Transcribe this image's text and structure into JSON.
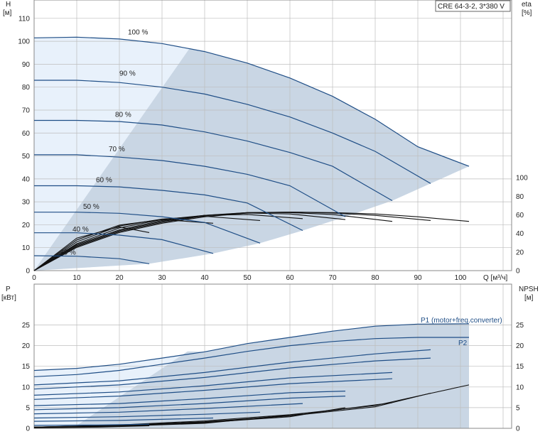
{
  "title": "CRE 64-3-2, 3*380 V",
  "colors": {
    "curve_blue": "#1f4e86",
    "eff_black": "#111111",
    "region_dark": "#c9d6e4",
    "region_light": "#e8f1fb",
    "grid": "#bdbdbd"
  },
  "chart_data": [
    {
      "type": "line",
      "title": "CRE 64-3-2, 3*380 V",
      "axes": {
        "x": {
          "label": "Q [м³/ч]",
          "ticks": [
            "0",
            "10",
            "20",
            "30",
            "40",
            "50",
            "60",
            "70",
            "80",
            "90",
            "100"
          ],
          "range": [
            0,
            112
          ]
        },
        "y_left": {
          "label_top": "H",
          "label_unit": "[м]",
          "ticks": [
            "0",
            "10",
            "20",
            "30",
            "40",
            "50",
            "60",
            "70",
            "80",
            "90",
            "100",
            "110"
          ],
          "range": [
            0,
            118
          ]
        },
        "y_right": {
          "label_top": "eta",
          "label_unit": "[%]",
          "ticks": [
            "0",
            "20",
            "40",
            "60",
            "80",
            "100"
          ],
          "range": [
            0,
            100
          ]
        }
      },
      "grid": true,
      "speed_labels": [
        "100 %",
        "90 %",
        "80 %",
        "70 %",
        "60 %",
        "50 %",
        "40 %",
        "25 %"
      ],
      "series": [
        {
          "name": "100 %",
          "axis": "H",
          "x": [
            0,
            10,
            20,
            30,
            40,
            50,
            60,
            70,
            80,
            90,
            102
          ],
          "y": [
            101.5,
            101.8,
            101,
            99,
            95.5,
            90.5,
            84,
            76,
            66,
            54,
            45.5
          ]
        },
        {
          "name": "90 %",
          "axis": "H",
          "x": [
            0,
            10,
            20,
            30,
            40,
            50,
            60,
            70,
            80,
            93
          ],
          "y": [
            83,
            83,
            82,
            80,
            77,
            72.5,
            67,
            60,
            52,
            38
          ]
        },
        {
          "name": "80 %",
          "axis": "H",
          "x": [
            0,
            10,
            20,
            30,
            40,
            50,
            60,
            70,
            84
          ],
          "y": [
            65.5,
            65.5,
            65,
            63.5,
            60.5,
            56.5,
            51.5,
            45.5,
            30.5
          ]
        },
        {
          "name": "70 %",
          "axis": "H",
          "x": [
            0,
            10,
            20,
            30,
            40,
            50,
            60,
            73
          ],
          "y": [
            50.5,
            50.5,
            49.5,
            48,
            45.5,
            42,
            37,
            23.5
          ]
        },
        {
          "name": "60 %",
          "axis": "H",
          "x": [
            0,
            10,
            20,
            30,
            40,
            50,
            63
          ],
          "y": [
            37,
            37,
            36.5,
            35,
            33,
            29.5,
            17.5
          ]
        },
        {
          "name": "50 %",
          "axis": "H",
          "x": [
            0,
            10,
            20,
            30,
            40,
            53
          ],
          "y": [
            25.5,
            25.5,
            25,
            23.5,
            21,
            12
          ]
        },
        {
          "name": "40 %",
          "axis": "H",
          "x": [
            0,
            10,
            20,
            30,
            42
          ],
          "y": [
            16.5,
            16.5,
            15.5,
            13.5,
            7.5
          ]
        },
        {
          "name": "25 %",
          "axis": "H",
          "x": [
            0,
            10,
            20,
            27
          ],
          "y": [
            6.5,
            6.3,
            5.2,
            3
          ]
        },
        {
          "name": "100 %",
          "axis": "eta",
          "x": [
            0,
            10,
            20,
            30,
            40,
            50,
            60,
            70,
            80,
            90,
            102
          ],
          "y": [
            0,
            25,
            41,
            51,
            58,
            62,
            63,
            62.5,
            61,
            58,
            53
          ]
        },
        {
          "name": "90 %",
          "axis": "eta",
          "x": [
            0,
            10,
            20,
            30,
            40,
            50,
            60,
            70,
            80,
            93
          ],
          "y": [
            0,
            26,
            42,
            52,
            59,
            62.5,
            63,
            62,
            59.5,
            54
          ]
        },
        {
          "name": "80 %",
          "axis": "eta",
          "x": [
            0,
            10,
            20,
            30,
            40,
            50,
            60,
            70,
            84
          ],
          "y": [
            0,
            27,
            43,
            53,
            59.5,
            62.5,
            62.5,
            60.5,
            53
          ]
        },
        {
          "name": "70 %",
          "axis": "eta",
          "x": [
            0,
            10,
            20,
            30,
            40,
            50,
            60,
            73
          ],
          "y": [
            0,
            28,
            44,
            54,
            59.5,
            62,
            61,
            55
          ]
        },
        {
          "name": "60 %",
          "axis": "eta",
          "x": [
            0,
            10,
            20,
            30,
            40,
            50,
            63
          ],
          "y": [
            0,
            29,
            46,
            55,
            59.5,
            60.5,
            56
          ]
        },
        {
          "name": "50 %",
          "axis": "eta",
          "x": [
            0,
            10,
            20,
            30,
            40,
            53
          ],
          "y": [
            0,
            31,
            48,
            55.5,
            58.5,
            54
          ]
        },
        {
          "name": "40 %",
          "axis": "eta",
          "x": [
            0,
            10,
            20,
            30,
            42
          ],
          "y": [
            0,
            33,
            49,
            55,
            51
          ]
        },
        {
          "name": "25 %",
          "axis": "eta",
          "x": [
            0,
            10,
            20,
            27
          ],
          "y": [
            0,
            35,
            47,
            41
          ]
        }
      ]
    },
    {
      "type": "line",
      "axes": {
        "x": {
          "range": [
            0,
            112
          ]
        },
        "y_left": {
          "label_top": "P",
          "label_unit": "[кВт]",
          "ticks": [
            "0",
            "5",
            "10",
            "15",
            "20",
            "25"
          ],
          "range": [
            0,
            28
          ]
        },
        "y_right": {
          "label_top": "NPSH",
          "label_unit": "[м]",
          "ticks": [
            "0",
            "5",
            "10",
            "15",
            "20",
            "25"
          ],
          "range": [
            0,
            28
          ]
        }
      },
      "grid": true,
      "labels": [
        "P1 (motor+freq.converter)",
        "P2"
      ],
      "series": [
        {
          "name": "P1 (motor+freq.converter)",
          "axis": "P",
          "x": [
            0,
            10,
            20,
            30,
            40,
            50,
            60,
            70,
            80,
            90,
            102
          ],
          "y": [
            14,
            14.5,
            15.5,
            17,
            18.5,
            20.5,
            22,
            23.5,
            24.7,
            25.2,
            25.3
          ]
        },
        {
          "name": "P2",
          "axis": "P",
          "x": [
            0,
            10,
            20,
            30,
            40,
            50,
            60,
            70,
            80,
            90,
            102
          ],
          "y": [
            12.5,
            13,
            14,
            15.5,
            17,
            18.6,
            20,
            21,
            21.7,
            22,
            22
          ]
        },
        {
          "axis": "P",
          "x": [
            0,
            20,
            40,
            60,
            80,
            93
          ],
          "y": [
            10.5,
            11.5,
            13.5,
            16,
            18,
            19
          ]
        },
        {
          "axis": "P",
          "x": [
            0,
            20,
            40,
            60,
            80,
            93
          ],
          "y": [
            9.5,
            10.5,
            12.3,
            14.6,
            16.3,
            17
          ]
        },
        {
          "axis": "P",
          "x": [
            0,
            20,
            40,
            60,
            84
          ],
          "y": [
            8,
            8.8,
            10.3,
            12.2,
            13.5
          ]
        },
        {
          "axis": "P",
          "x": [
            0,
            20,
            40,
            60,
            84
          ],
          "y": [
            7,
            7.8,
            9.2,
            10.8,
            12
          ]
        },
        {
          "axis": "P",
          "x": [
            0,
            20,
            40,
            60,
            73
          ],
          "y": [
            5.5,
            6,
            7.2,
            8.6,
            9
          ]
        },
        {
          "axis": "P",
          "x": [
            0,
            20,
            40,
            60,
            73
          ],
          "y": [
            4.5,
            5,
            6,
            7.3,
            7.8
          ]
        },
        {
          "axis": "P",
          "x": [
            0,
            20,
            40,
            63
          ],
          "y": [
            3.5,
            3.9,
            4.8,
            6
          ]
        },
        {
          "axis": "P",
          "x": [
            0,
            20,
            40,
            53
          ],
          "y": [
            2.5,
            2.8,
            3.4,
            3.9
          ]
        },
        {
          "axis": "P",
          "x": [
            0,
            20,
            42
          ],
          "y": [
            1.7,
            1.9,
            2.5
          ]
        },
        {
          "axis": "P",
          "x": [
            0,
            15,
            27
          ],
          "y": [
            0.7,
            0.8,
            1
          ]
        },
        {
          "axis": "NPSH",
          "x": [
            0,
            20,
            40,
            60,
            80,
            90,
            102
          ],
          "y": [
            0.3,
            0.8,
            1.8,
            3.3,
            5.5,
            7.8,
            10.5
          ]
        },
        {
          "axis": "NPSH",
          "x": [
            0,
            20,
            40,
            60,
            80,
            93
          ],
          "y": [
            0.3,
            0.7,
            1.6,
            3,
            5.2,
            8.5
          ]
        },
        {
          "axis": "NPSH",
          "x": [
            0,
            20,
            40,
            60,
            84
          ],
          "y": [
            0.3,
            0.7,
            1.5,
            3,
            6.2
          ]
        },
        {
          "axis": "NPSH",
          "x": [
            0,
            20,
            40,
            60,
            73
          ],
          "y": [
            0.2,
            0.6,
            1.4,
            2.8,
            5
          ]
        },
        {
          "axis": "NPSH",
          "x": [
            0,
            20,
            40,
            63
          ],
          "y": [
            0.2,
            0.6,
            1.3,
            3.5
          ]
        },
        {
          "axis": "NPSH",
          "x": [
            0,
            20,
            40,
            53
          ],
          "y": [
            0.2,
            0.5,
            1.2,
            2.5
          ]
        },
        {
          "axis": "NPSH",
          "x": [
            0,
            20,
            42
          ],
          "y": [
            0.2,
            0.5,
            1.5
          ]
        },
        {
          "axis": "NPSH",
          "x": [
            0,
            15,
            27
          ],
          "y": [
            0.1,
            0.3,
            0.6
          ]
        }
      ]
    }
  ]
}
